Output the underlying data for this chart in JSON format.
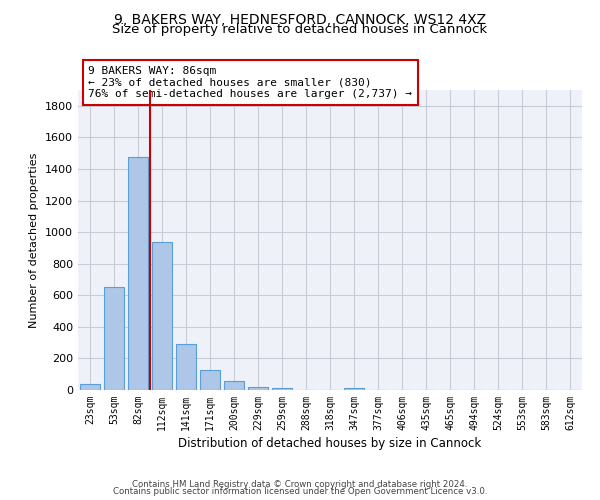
{
  "title_line1": "9, BAKERS WAY, HEDNESFORD, CANNOCK, WS12 4XZ",
  "title_line2": "Size of property relative to detached houses in Cannock",
  "xlabel": "Distribution of detached houses by size in Cannock",
  "ylabel": "Number of detached properties",
  "footer_line1": "Contains HM Land Registry data © Crown copyright and database right 2024.",
  "footer_line2": "Contains public sector information licensed under the Open Government Licence v3.0.",
  "bar_labels": [
    "23sqm",
    "53sqm",
    "82sqm",
    "112sqm",
    "141sqm",
    "171sqm",
    "200sqm",
    "229sqm",
    "259sqm",
    "288sqm",
    "318sqm",
    "347sqm",
    "377sqm",
    "406sqm",
    "435sqm",
    "465sqm",
    "494sqm",
    "524sqm",
    "553sqm",
    "583sqm",
    "612sqm"
  ],
  "bar_values": [
    40,
    650,
    1475,
    935,
    290,
    125,
    60,
    22,
    14,
    0,
    0,
    14,
    0,
    0,
    0,
    0,
    0,
    0,
    0,
    0,
    0
  ],
  "bar_color": "#aec6e8",
  "bar_edge_color": "#5a9fd4",
  "vline_x_index": 2.5,
  "vline_color": "#cc0000",
  "annotation_text": "9 BAKERS WAY: 86sqm\n← 23% of detached houses are smaller (830)\n76% of semi-detached houses are larger (2,737) →",
  "annotation_box_color": "#cc0000",
  "annotation_text_color": "black",
  "ylim": [
    0,
    1900
  ],
  "yticks": [
    0,
    200,
    400,
    600,
    800,
    1000,
    1200,
    1400,
    1600,
    1800
  ],
  "bg_color": "#eef2f8",
  "plot_bg_color": "#eef2f8",
  "grid_color": "#c8ccd8",
  "title_fontsize": 10,
  "subtitle_fontsize": 9.5,
  "bar_width": 0.85
}
